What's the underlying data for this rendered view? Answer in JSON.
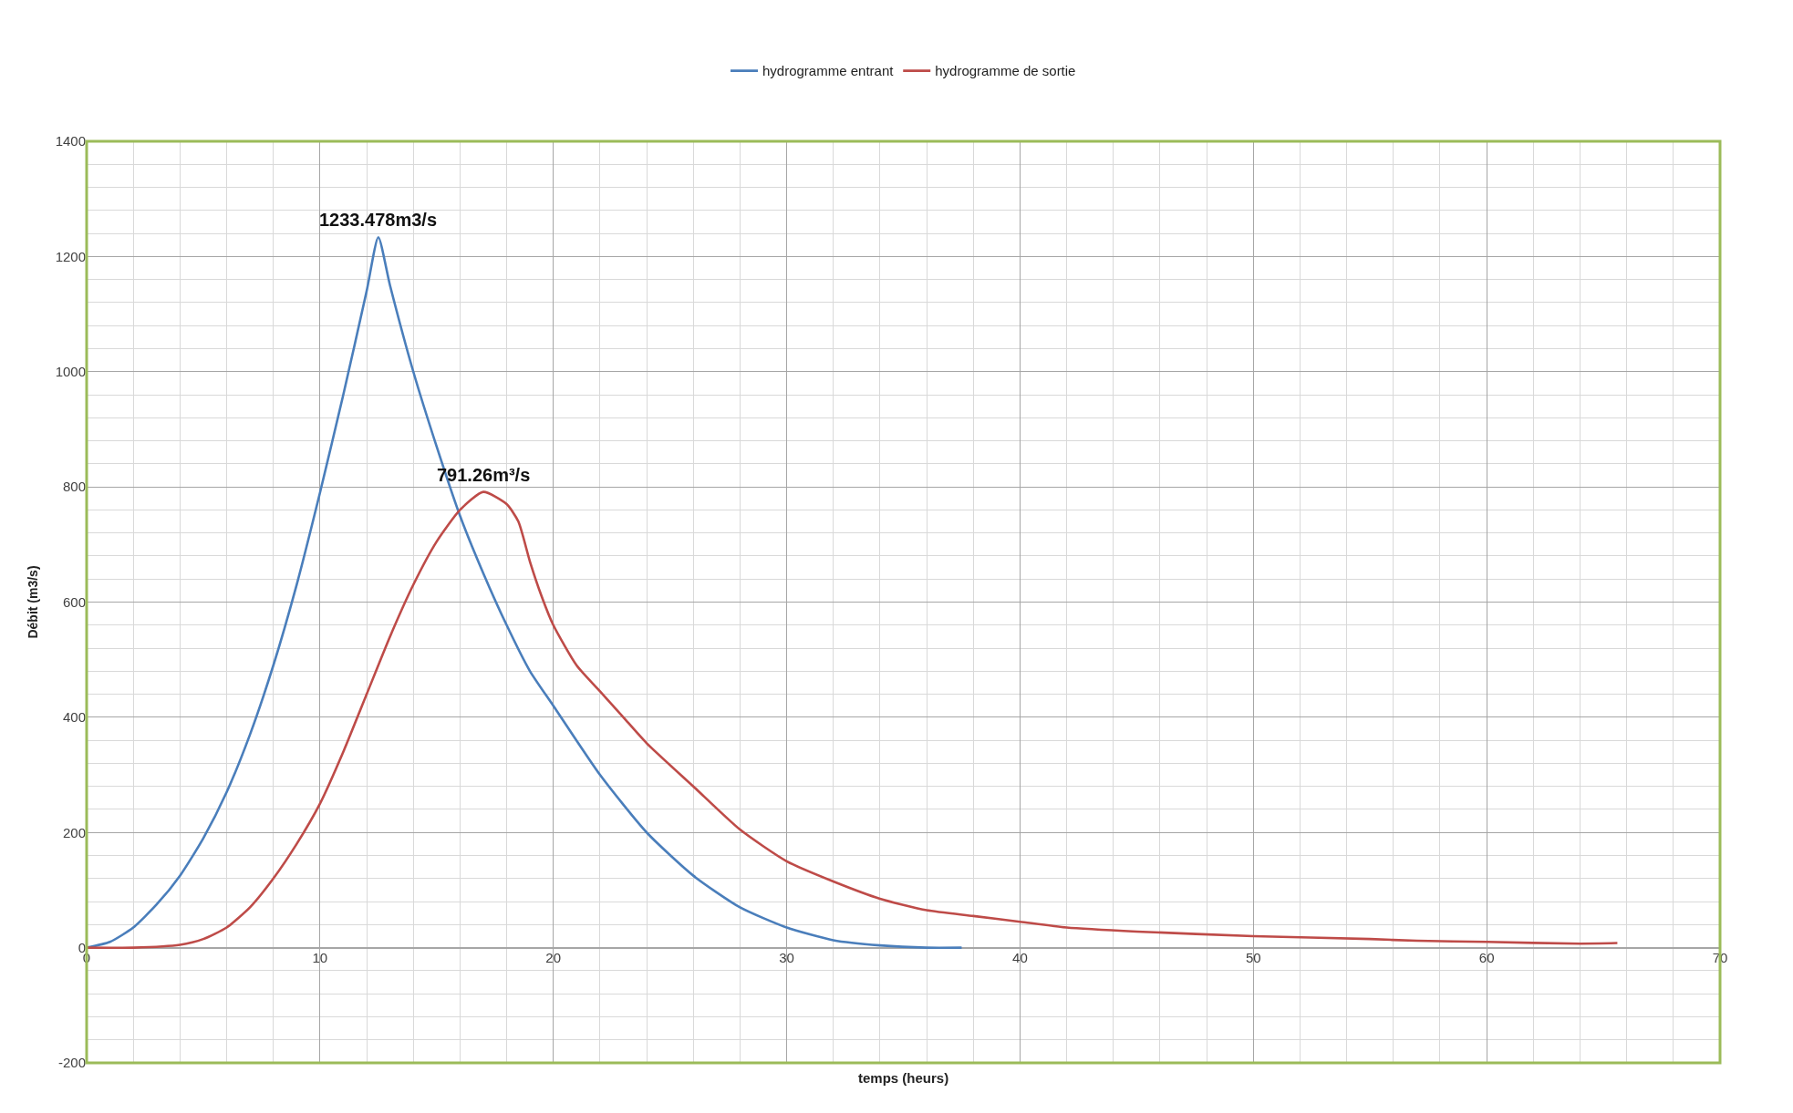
{
  "chart_data": {
    "type": "line",
    "xlabel": "temps (heurs)",
    "ylabel": "Débit (m3/s)",
    "xlim": [
      0,
      70
    ],
    "xticks": [
      0,
      10,
      20,
      30,
      40,
      50,
      60,
      70
    ],
    "ylim": [
      -200,
      1400
    ],
    "yticks": [
      -200,
      0,
      200,
      400,
      600,
      800,
      1000,
      1200,
      1400
    ],
    "grid": true,
    "legend": "top",
    "line_style": "solid",
    "marker": "none",
    "series": [
      {
        "name": "hydrogramme entrant",
        "color": "#4a7ebb",
        "x": [
          0,
          1,
          2,
          3,
          4,
          5,
          6,
          7,
          8,
          9,
          10,
          11,
          12,
          12.5,
          13,
          14,
          15,
          16,
          17,
          18,
          19,
          20,
          22,
          24,
          26,
          28,
          30,
          32,
          34,
          36,
          37.5
        ],
        "values": [
          0,
          10,
          35,
          75,
          125,
          190,
          270,
          370,
          490,
          630,
          790,
          960,
          1140,
          1233.478,
          1150,
          1000,
          870,
          750,
          650,
          560,
          480,
          420,
          300,
          200,
          125,
          70,
          35,
          13,
          4,
          0,
          0
        ]
      },
      {
        "name": "hydrogramme de sortie",
        "color": "#be4b48",
        "x": [
          0,
          2,
          4,
          5,
          6,
          7,
          8,
          9,
          10,
          11,
          12,
          13,
          14,
          15,
          16,
          17,
          18,
          18.5,
          19,
          19.5,
          20,
          21,
          22,
          23,
          24,
          26,
          28,
          30,
          32,
          34,
          36,
          38,
          40,
          42,
          45,
          50,
          55,
          57,
          60,
          64,
          65.6
        ],
        "values": [
          0,
          0,
          5,
          15,
          35,
          70,
          120,
          180,
          250,
          340,
          440,
          540,
          630,
          705,
          760,
          791.26,
          770,
          740,
          670,
          610,
          560,
          490,
          445,
          400,
          355,
          280,
          205,
          150,
          115,
          85,
          65,
          55,
          45,
          35,
          28,
          20,
          15,
          12,
          10,
          7,
          8
        ]
      }
    ],
    "annotations": [
      {
        "text": "1233.478m3/s",
        "x": 12.5,
        "y": 1233.478
      },
      {
        "text": "791.26m³/s",
        "x": 17,
        "y": 791.26
      }
    ]
  }
}
